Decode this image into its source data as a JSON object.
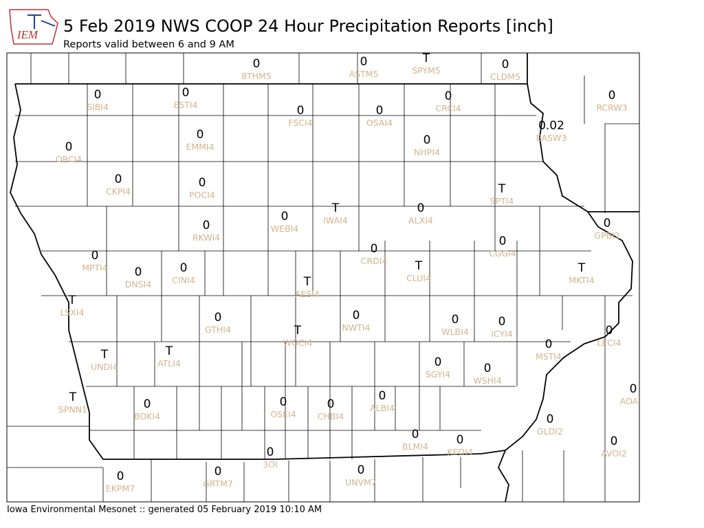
{
  "logo": "IEM",
  "title": "5 Feb 2019 NWS COOP 24 Hour Precipitation Reports [inch]",
  "subtitle": "Reports valid between 6 and 9 AM",
  "footer": "Iowa Environmental Mesonet :: generated 05 February 2019 10:10 AM",
  "stations": [
    {
      "id": "8THM5",
      "value": "0"
    },
    {
      "id": "ASTM5",
      "value": "0"
    },
    {
      "id": "SPYM5",
      "value": "T"
    },
    {
      "id": "CLDM5",
      "value": "0"
    },
    {
      "id": "SIBI4",
      "value": "0"
    },
    {
      "id": "ESTI4",
      "value": "0"
    },
    {
      "id": "FSCI4",
      "value": "0"
    },
    {
      "id": "OSAI4",
      "value": "0"
    },
    {
      "id": "CRCI4",
      "value": "0"
    },
    {
      "id": "RCRW3",
      "value": "0"
    },
    {
      "id": "EASW3",
      "value": "0.02"
    },
    {
      "id": "ORCI4",
      "value": "0"
    },
    {
      "id": "EMMI4",
      "value": "0"
    },
    {
      "id": "NHPI4",
      "value": "0"
    },
    {
      "id": "CKPI4",
      "value": "0"
    },
    {
      "id": "POCI4",
      "value": "0"
    },
    {
      "id": "SPTI4",
      "value": "T"
    },
    {
      "id": "IWAI4",
      "value": "T"
    },
    {
      "id": "ALXI4",
      "value": "0"
    },
    {
      "id": "WEBI4",
      "value": "0"
    },
    {
      "id": "RKWI4",
      "value": "0"
    },
    {
      "id": "GPBI2",
      "value": "0"
    },
    {
      "id": "CRDI4",
      "value": "0"
    },
    {
      "id": "CGGI4",
      "value": "0"
    },
    {
      "id": "MPTI4",
      "value": "0"
    },
    {
      "id": "DNSI4",
      "value": "0"
    },
    {
      "id": "CINI4",
      "value": "0"
    },
    {
      "id": "CLUI4",
      "value": "T"
    },
    {
      "id": "MKTI4",
      "value": "T"
    },
    {
      "id": "AESI4",
      "value": "T"
    },
    {
      "id": "LSXI4",
      "value": "T"
    },
    {
      "id": "GTHI4",
      "value": "0"
    },
    {
      "id": "NWTI4",
      "value": "0"
    },
    {
      "id": "WLBI4",
      "value": "0"
    },
    {
      "id": "ICYI4",
      "value": "0"
    },
    {
      "id": "WGCI4",
      "value": "T"
    },
    {
      "id": "LECI4",
      "value": "0"
    },
    {
      "id": "MSTI4",
      "value": "0"
    },
    {
      "id": "UNDI4",
      "value": "T"
    },
    {
      "id": "ATLI4",
      "value": "T"
    },
    {
      "id": "SGYI4",
      "value": "0"
    },
    {
      "id": "WSHI4",
      "value": "0"
    },
    {
      "id": "AOA",
      "value": "0"
    },
    {
      "id": "SPNN1",
      "value": "T"
    },
    {
      "id": "BOKI4",
      "value": "0"
    },
    {
      "id": "OSEI4",
      "value": "0"
    },
    {
      "id": "CHBI4",
      "value": "0"
    },
    {
      "id": "ALBI4",
      "value": "0"
    },
    {
      "id": "GLDI2",
      "value": "0"
    },
    {
      "id": "BLMI4",
      "value": "0"
    },
    {
      "id": "KEOI4",
      "value": "0"
    },
    {
      "id": "AVOI2",
      "value": "0"
    },
    {
      "id": "3OI",
      "value": "0"
    },
    {
      "id": "EKPM7",
      "value": "0"
    },
    {
      "id": "GRTM7",
      "value": "0"
    },
    {
      "id": "UNVM7",
      "value": "0"
    }
  ]
}
